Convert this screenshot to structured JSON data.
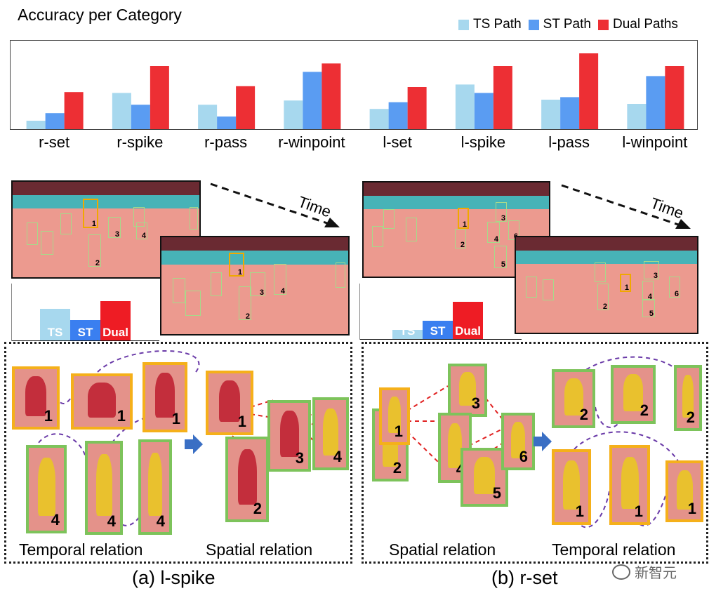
{
  "chart_data": {
    "type": "bar",
    "title": "Accuracy per Category",
    "categories": [
      "r-set",
      "r-spike",
      "r-pass",
      "r-winpoint",
      "l-set",
      "l-spike",
      "l-pass",
      "l-winpoint"
    ],
    "series": [
      {
        "name": "TS Path",
        "color": "#a7d8ee",
        "values": [
          0.1,
          0.43,
          0.29,
          0.34,
          0.24,
          0.53,
          0.35,
          0.3
        ]
      },
      {
        "name": "ST Path",
        "color": "#5a9cf2",
        "values": [
          0.19,
          0.29,
          0.15,
          0.68,
          0.32,
          0.43,
          0.38,
          0.63
        ]
      },
      {
        "name": "Dual Paths",
        "color": "#ed2f34",
        "values": [
          0.44,
          0.75,
          0.51,
          0.78,
          0.5,
          0.75,
          0.9,
          0.75
        ]
      }
    ],
    "ylim": [
      0,
      1
    ],
    "grid": false,
    "legend_position": "top-right"
  },
  "panels": [
    {
      "time_label": "Time",
      "mini_bars": {
        "labels": [
          "TS",
          "ST",
          "Dual"
        ],
        "values": [
          0.56,
          0.37,
          0.7
        ],
        "colors": [
          "#a7d8ee",
          "#3a7ff0",
          "#ee1c24"
        ]
      },
      "relation_left": "Temporal relation",
      "relation_right": "Spatial relation",
      "caption": "(a) l-spike"
    },
    {
      "time_label": "Time",
      "mini_bars": {
        "labels": [
          "TS",
          "ST",
          "Dual"
        ],
        "values": [
          0.17,
          0.34,
          0.67
        ],
        "colors": [
          "#a7d8ee",
          "#3a7ff0",
          "#ee1c24"
        ]
      },
      "relation_left": "Spatial relation",
      "relation_right": "Temporal relation",
      "caption": "(b) r-set"
    }
  ],
  "watermark": "新智元",
  "colors": {
    "temporal_box": "#f5b01a",
    "spatial_box": "#7dc35b",
    "temporal_link": "#6a3aa8",
    "spatial_link": "#e02020",
    "arrow": "#3a6fc4"
  }
}
